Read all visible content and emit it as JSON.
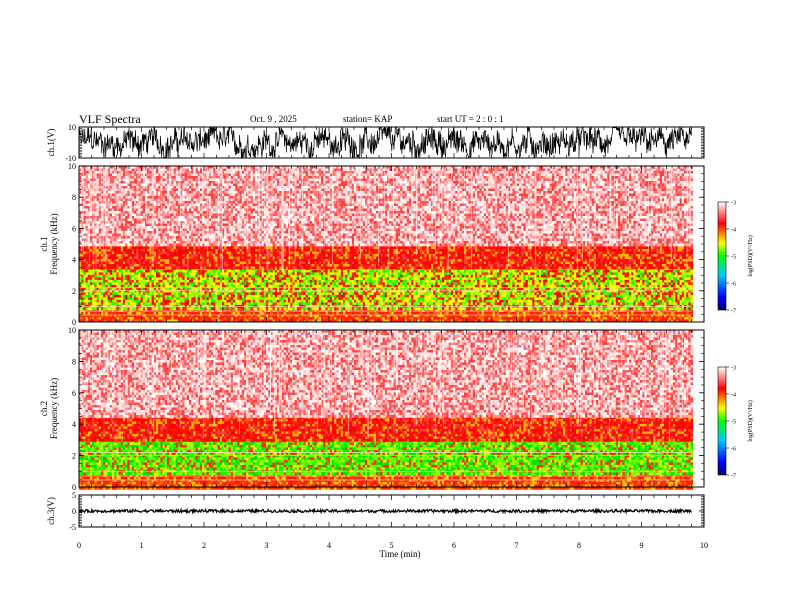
{
  "header": {
    "title": "VLF Spectra",
    "date": "Oct. 9 , 2025",
    "station": "station= KAP",
    "start": "start UT =  2 : 0  : 1"
  },
  "chart_data": [
    {
      "type": "line",
      "id": "ch1-waveform",
      "ylabel": "ch.1(V)",
      "ylim": [
        -10,
        10
      ],
      "ytick_labels": [
        "10",
        "-10"
      ],
      "x_range_min": [
        0,
        9.8
      ],
      "series": [
        {
          "name": "ch.1 voltage",
          "description": "dense noisy waveform between about -9 and 9 V"
        }
      ]
    },
    {
      "type": "heatmap",
      "id": "ch1-spectrogram",
      "ylabel": "ch.1\nFrequency (kHz)",
      "ylim": [
        0,
        10
      ],
      "ytick_labels": [
        "0",
        "2",
        "4",
        "6",
        "8",
        "10"
      ],
      "x_range_min": [
        0,
        9.8
      ],
      "color_bands_khz": [
        {
          "from": 0,
          "to": 0.8,
          "color": "red-orange"
        },
        {
          "from": 0.8,
          "to": 3.5,
          "color": "green-yellow"
        },
        {
          "from": 3.5,
          "to": 5.0,
          "color": "red"
        },
        {
          "from": 5.0,
          "to": 10,
          "color": "light red"
        }
      ],
      "colorbar": {
        "label": "log(PSD)(V²/Hz)",
        "range": [
          -7,
          -3
        ],
        "tick_labels": [
          "-3",
          "-4",
          "-5",
          "-6",
          "-7"
        ]
      }
    },
    {
      "type": "heatmap",
      "id": "ch2-spectrogram",
      "ylabel": "ch.2\nFrequency (kHz)",
      "ylim": [
        0,
        10
      ],
      "ytick_labels": [
        "0",
        "2",
        "4",
        "6",
        "8",
        "10"
      ],
      "x_range_min": [
        0,
        9.8
      ],
      "color_bands_khz": [
        {
          "from": 0,
          "to": 0.8,
          "color": "red-orange"
        },
        {
          "from": 0.8,
          "to": 3.0,
          "color": "green"
        },
        {
          "from": 3.0,
          "to": 4.5,
          "color": "red"
        },
        {
          "from": 4.5,
          "to": 10,
          "color": "light red"
        }
      ],
      "colorbar": {
        "label": "log(PSD)(V²/Hz)",
        "range": [
          -7,
          -3
        ],
        "tick_labels": [
          "-3",
          "-4",
          "-5",
          "-6",
          "-7"
        ]
      }
    },
    {
      "type": "line",
      "id": "ch3-waveform",
      "ylabel": "ch.3(V)",
      "ylim": [
        -5,
        5
      ],
      "ytick_labels": [
        "5",
        "0",
        "-5"
      ],
      "x_range_min": [
        0,
        9.8
      ],
      "series": [
        {
          "name": "ch.3 voltage",
          "description": "thin noisy trace centered near 0 V"
        }
      ]
    }
  ],
  "xaxis": {
    "xlabel": "Time (min)",
    "xlim": [
      0,
      10
    ],
    "tick_labels": [
      "0",
      "1",
      "2",
      "3",
      "4",
      "5",
      "6",
      "7",
      "8",
      "9",
      "10"
    ]
  },
  "colors": {
    "axis": "#000000",
    "cb_stops": [
      "#000070",
      "#0000ff",
      "#00c8ff",
      "#00ff00",
      "#ffff00",
      "#ff0000",
      "#ffffff"
    ]
  }
}
